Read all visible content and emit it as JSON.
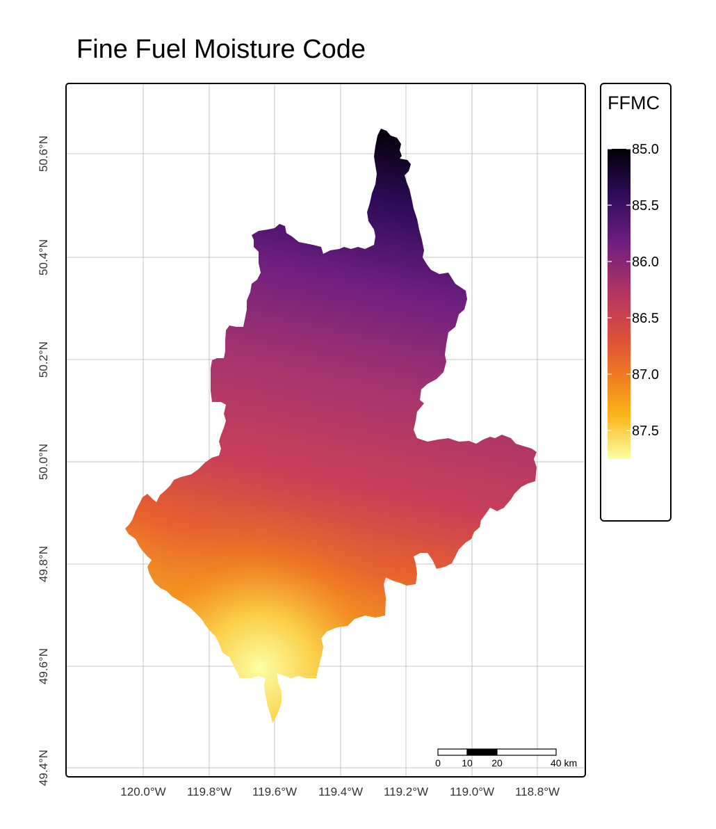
{
  "title": "Fine Fuel Moisture Code",
  "map": {
    "lat_ticks": [
      "50.6°N",
      "50.4°N",
      "50.2°N",
      "50.0°N",
      "49.8°N",
      "49.6°N",
      "49.4°N"
    ],
    "lon_ticks": [
      "120.0°W",
      "119.8°W",
      "119.6°W",
      "119.4°W",
      "119.2°W",
      "119.0°W",
      "118.8°W"
    ],
    "gridlines": true
  },
  "legend": {
    "title": "FFMC",
    "labels": [
      "85.0",
      "85.5",
      "86.0",
      "86.5",
      "87.0",
      "87.5"
    ],
    "colors": [
      "#000004",
      "#2c0b57",
      "#6d1e7f",
      "#a8356d",
      "#d44a4a",
      "#f07f21",
      "#fbb61a",
      "#fcffa4"
    ]
  },
  "scale_bar": {
    "labels": [
      "0",
      "10",
      "20",
      "40 km"
    ]
  },
  "colors": {
    "panel_border": "#000000",
    "grid": "#b5b5b5"
  }
}
